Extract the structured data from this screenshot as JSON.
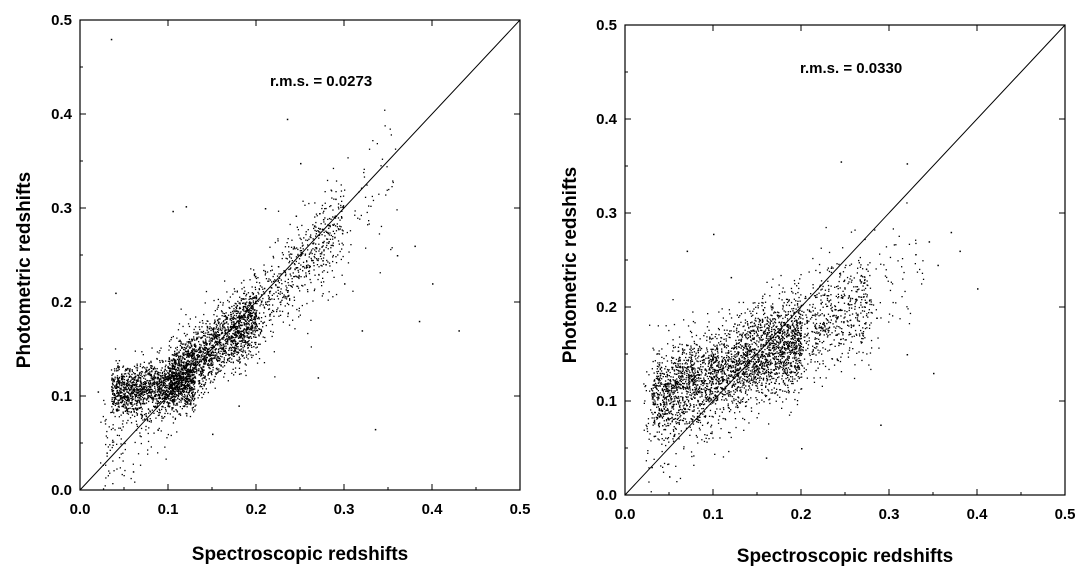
{
  "chart_data": [
    {
      "type": "scatter",
      "xlabel": "Spectroscopic redshifts",
      "ylabel": "Photometric redshifts",
      "annotation": "r.m.s. = 0.0273",
      "xlim": [
        0.0,
        0.5
      ],
      "ylim": [
        0.0,
        0.5
      ],
      "xticks": [
        "0.0",
        "0.1",
        "0.2",
        "0.3",
        "0.4",
        "0.5"
      ],
      "yticks": [
        "0.0",
        "0.1",
        "0.2",
        "0.3",
        "0.4",
        "0.5"
      ],
      "reference_line": {
        "x": [
          0.0,
          0.5
        ],
        "y": [
          0.0,
          0.5
        ]
      },
      "grid": false,
      "point_color": "#000000",
      "points": [
        [
          0.035,
          0.48
        ],
        [
          0.235,
          0.395
        ],
        [
          0.25,
          0.348
        ],
        [
          0.245,
          0.292
        ],
        [
          0.21,
          0.3
        ],
        [
          0.29,
          0.31
        ],
        [
          0.3,
          0.22
        ],
        [
          0.32,
          0.17
        ],
        [
          0.335,
          0.065
        ],
        [
          0.36,
          0.25
        ],
        [
          0.38,
          0.26
        ],
        [
          0.385,
          0.18
        ],
        [
          0.4,
          0.22
        ],
        [
          0.105,
          0.297
        ],
        [
          0.12,
          0.302
        ],
        [
          0.04,
          0.21
        ],
        [
          0.02,
          0.105
        ],
        [
          0.03,
          0.04
        ],
        [
          0.06,
          0.02
        ],
        [
          0.07,
          0.08
        ],
        [
          0.15,
          0.06
        ],
        [
          0.18,
          0.09
        ],
        [
          0.27,
          0.12
        ],
        [
          0.43,
          0.17
        ]
      ],
      "cloud": [
        {
          "n": 1500,
          "xmin": 0.035,
          "xmax": 0.13,
          "slope": 0.08,
          "intercept": 0.103,
          "scatter": 0.013
        },
        {
          "n": 1600,
          "xmin": 0.1,
          "xmax": 0.2,
          "slope": 0.65,
          "intercept": 0.055,
          "scatter": 0.017
        },
        {
          "n": 650,
          "xmin": 0.17,
          "xmax": 0.3,
          "slope": 1.0,
          "intercept": -0.012,
          "scatter": 0.022
        },
        {
          "n": 150,
          "xmin": 0.2,
          "xmax": 0.36,
          "slope": 0.9,
          "intercept": 0.01,
          "scatter": 0.035
        },
        {
          "n": 280,
          "xmin": 0.02,
          "xmax": 0.14,
          "slope": 0.7,
          "intercept": 0.03,
          "scatter": 0.028
        }
      ]
    },
    {
      "type": "scatter",
      "xlabel": "Spectroscopic redshifts",
      "ylabel": "Photometric redshifts",
      "annotation": "r.m.s. = 0.0330",
      "xlim": [
        0.0,
        0.5
      ],
      "ylim": [
        0.0,
        0.5
      ],
      "xticks": [
        "0.0",
        "0.1",
        "0.2",
        "0.3",
        "0.4",
        "0.5"
      ],
      "yticks": [
        "0.0",
        "0.1",
        "0.2",
        "0.3",
        "0.4",
        "0.5"
      ],
      "reference_line": {
        "x": [
          0.0,
          0.5
        ],
        "y": [
          0.0,
          0.5
        ]
      },
      "grid": false,
      "point_color": "#000000",
      "points": [
        [
          0.245,
          0.355
        ],
        [
          0.32,
          0.353
        ],
        [
          0.1,
          0.278
        ],
        [
          0.345,
          0.27
        ],
        [
          0.37,
          0.28
        ],
        [
          0.38,
          0.26
        ],
        [
          0.355,
          0.245
        ],
        [
          0.32,
          0.15
        ],
        [
          0.29,
          0.075
        ],
        [
          0.4,
          0.22
        ],
        [
          0.03,
          0.03
        ],
        [
          0.05,
          0.02
        ],
        [
          0.16,
          0.04
        ],
        [
          0.2,
          0.05
        ],
        [
          0.12,
          0.232
        ],
        [
          0.35,
          0.13
        ],
        [
          0.07,
          0.26
        ]
      ],
      "cloud": [
        {
          "n": 2300,
          "xmin": 0.03,
          "xmax": 0.2,
          "slope": 0.38,
          "intercept": 0.09,
          "scatter": 0.024
        },
        {
          "n": 900,
          "xmin": 0.12,
          "xmax": 0.28,
          "slope": 0.45,
          "intercept": 0.085,
          "scatter": 0.026
        },
        {
          "n": 300,
          "xmin": 0.02,
          "xmax": 0.12,
          "slope": 0.4,
          "intercept": 0.08,
          "scatter": 0.035
        },
        {
          "n": 150,
          "xmin": 0.18,
          "xmax": 0.34,
          "slope": 0.55,
          "intercept": 0.06,
          "scatter": 0.035
        }
      ]
    }
  ]
}
